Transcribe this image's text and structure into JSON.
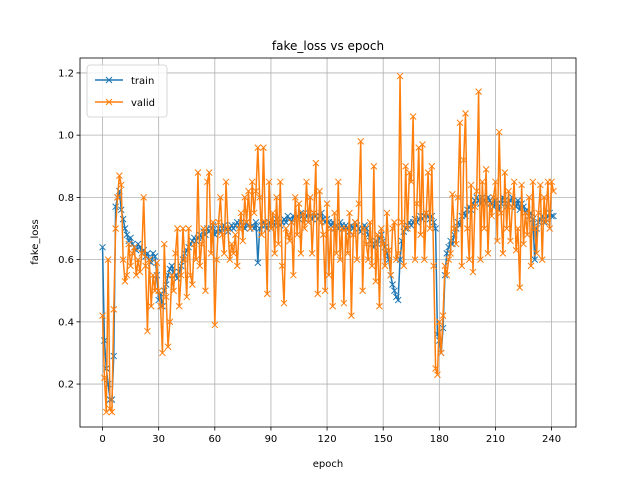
{
  "chart_data": {
    "type": "line",
    "title": "fake_loss vs epoch",
    "xlabel": "epoch",
    "ylabel": "fake_loss",
    "x": [
      0,
      1,
      2,
      3,
      4,
      5,
      6,
      7,
      8,
      9,
      10,
      11,
      12,
      13,
      14,
      15,
      16,
      17,
      18,
      19,
      20,
      21,
      22,
      23,
      24,
      25,
      26,
      27,
      28,
      29,
      30,
      31,
      32,
      33,
      34,
      35,
      36,
      37,
      38,
      39,
      40,
      41,
      42,
      43,
      44,
      45,
      46,
      47,
      48,
      49,
      50,
      51,
      52,
      53,
      54,
      55,
      56,
      57,
      58,
      59,
      60,
      61,
      62,
      63,
      64,
      65,
      66,
      67,
      68,
      69,
      70,
      71,
      72,
      73,
      74,
      75,
      76,
      77,
      78,
      79,
      80,
      81,
      82,
      83,
      84,
      85,
      86,
      87,
      88,
      89,
      90,
      91,
      92,
      93,
      94,
      95,
      96,
      97,
      98,
      99,
      100,
      101,
      102,
      103,
      104,
      105,
      106,
      107,
      108,
      109,
      110,
      111,
      112,
      113,
      114,
      115,
      116,
      117,
      118,
      119,
      120,
      121,
      122,
      123,
      124,
      125,
      126,
      127,
      128,
      129,
      130,
      131,
      132,
      133,
      134,
      135,
      136,
      137,
      138,
      139,
      140,
      141,
      142,
      143,
      144,
      145,
      146,
      147,
      148,
      149,
      150,
      151,
      152,
      153,
      154,
      155,
      156,
      157,
      158,
      159,
      160,
      161,
      162,
      163,
      164,
      165,
      166,
      167,
      168,
      169,
      170,
      171,
      172,
      173,
      174,
      175,
      176,
      177,
      178,
      179,
      180,
      181,
      182,
      183,
      184,
      185,
      186,
      187,
      188,
      189,
      190,
      191,
      192,
      193,
      194,
      195,
      196,
      197,
      198,
      199,
      200,
      201,
      202,
      203,
      204,
      205,
      206,
      207,
      208,
      209,
      210,
      211,
      212,
      213,
      214,
      215,
      216,
      217,
      218,
      219,
      220,
      221,
      222,
      223,
      224,
      225,
      226,
      227,
      228,
      229,
      230,
      231,
      232,
      233,
      234,
      235,
      236,
      237,
      238,
      239,
      240,
      241
    ],
    "series": [
      {
        "name": "train",
        "color": "#1f77b4",
        "values": [
          0.64,
          0.34,
          0.25,
          0.2,
          0.15,
          0.15,
          0.29,
          0.77,
          0.8,
          0.82,
          0.76,
          0.73,
          0.7,
          0.68,
          0.66,
          0.67,
          0.65,
          0.64,
          0.63,
          0.65,
          0.64,
          0.62,
          0.63,
          0.61,
          0.62,
          0.6,
          0.59,
          0.62,
          0.61,
          0.55,
          0.47,
          0.49,
          0.45,
          0.5,
          0.52,
          0.55,
          0.57,
          0.58,
          0.56,
          0.55,
          0.54,
          0.56,
          0.58,
          0.6,
          0.62,
          0.63,
          0.64,
          0.65,
          0.66,
          0.67,
          0.66,
          0.67,
          0.68,
          0.67,
          0.69,
          0.68,
          0.7,
          0.69,
          0.7,
          0.71,
          0.68,
          0.69,
          0.7,
          0.69,
          0.7,
          0.71,
          0.7,
          0.69,
          0.7,
          0.71,
          0.7,
          0.71,
          0.72,
          0.71,
          0.72,
          0.71,
          0.7,
          0.72,
          0.71,
          0.7,
          0.71,
          0.7,
          0.72,
          0.59,
          0.7,
          0.71,
          0.72,
          0.71,
          0.7,
          0.72,
          0.71,
          0.72,
          0.71,
          0.73,
          0.72,
          0.71,
          0.72,
          0.73,
          0.72,
          0.74,
          0.73,
          0.72,
          0.74,
          0.73,
          0.74,
          0.73,
          0.75,
          0.74,
          0.73,
          0.74,
          0.75,
          0.74,
          0.73,
          0.75,
          0.74,
          0.73,
          0.74,
          0.75,
          0.73,
          0.72,
          0.73,
          0.72,
          0.71,
          0.72,
          0.7,
          0.71,
          0.7,
          0.72,
          0.71,
          0.7,
          0.71,
          0.7,
          0.69,
          0.71,
          0.7,
          0.72,
          0.71,
          0.7,
          0.69,
          0.7,
          0.71,
          0.7,
          0.68,
          0.66,
          0.65,
          0.64,
          0.66,
          0.65,
          0.67,
          0.68,
          0.66,
          0.64,
          0.62,
          0.6,
          0.55,
          0.52,
          0.5,
          0.48,
          0.47,
          0.6,
          0.66,
          0.69,
          0.7,
          0.71,
          0.72,
          0.71,
          0.72,
          0.73,
          0.72,
          0.73,
          0.74,
          0.73,
          0.74,
          0.75,
          0.74,
          0.73,
          0.74,
          0.72,
          0.7,
          0.36,
          0.34,
          0.3,
          0.38,
          0.55,
          0.62,
          0.64,
          0.66,
          0.65,
          0.68,
          0.7,
          0.72,
          0.71,
          0.74,
          0.75,
          0.74,
          0.76,
          0.77,
          0.76,
          0.78,
          0.79,
          0.8,
          0.79,
          0.78,
          0.8,
          0.79,
          0.78,
          0.8,
          0.79,
          0.78,
          0.77,
          0.79,
          0.78,
          0.76,
          0.78,
          0.8,
          0.79,
          0.77,
          0.78,
          0.79,
          0.8,
          0.78,
          0.77,
          0.79,
          0.76,
          0.78,
          0.77,
          0.75,
          0.76,
          0.74,
          0.75,
          0.73,
          0.6,
          0.7,
          0.72,
          0.73,
          0.74,
          0.72,
          0.73,
          0.74,
          0.75,
          0.74,
          0.74
        ]
      },
      {
        "name": "valid",
        "color": "#ff7f0e",
        "values": [
          0.42,
          0.22,
          0.11,
          0.6,
          0.12,
          0.11,
          0.44,
          0.7,
          0.8,
          0.87,
          0.84,
          0.6,
          0.53,
          0.55,
          0.65,
          0.58,
          0.62,
          0.64,
          0.55,
          0.6,
          0.56,
          0.62,
          0.8,
          0.58,
          0.37,
          0.6,
          0.45,
          0.55,
          0.5,
          0.59,
          0.5,
          0.45,
          0.3,
          0.65,
          0.48,
          0.32,
          0.4,
          0.55,
          0.5,
          0.62,
          0.7,
          0.45,
          0.55,
          0.7,
          0.6,
          0.48,
          0.7,
          0.55,
          0.52,
          0.65,
          0.6,
          0.88,
          0.58,
          0.65,
          0.7,
          0.5,
          0.85,
          0.88,
          0.62,
          0.72,
          0.39,
          0.6,
          0.72,
          0.8,
          0.68,
          0.62,
          0.85,
          0.7,
          0.6,
          0.65,
          0.62,
          0.68,
          0.58,
          0.7,
          0.75,
          0.66,
          0.8,
          0.72,
          0.82,
          0.7,
          0.85,
          0.75,
          0.82,
          0.96,
          0.8,
          0.68,
          0.96,
          0.72,
          0.49,
          0.85,
          0.7,
          0.75,
          0.62,
          0.8,
          0.65,
          0.85,
          0.58,
          0.46,
          0.7,
          0.68,
          0.66,
          0.72,
          0.55,
          0.8,
          0.68,
          0.78,
          0.62,
          0.75,
          0.7,
          0.85,
          0.72,
          0.8,
          0.62,
          0.75,
          0.91,
          0.49,
          0.82,
          0.72,
          0.68,
          0.5,
          0.78,
          0.55,
          0.7,
          0.45,
          0.75,
          0.62,
          0.85,
          0.6,
          0.7,
          0.46,
          0.7,
          0.62,
          0.75,
          0.42,
          0.68,
          0.72,
          0.6,
          0.78,
          0.98,
          0.5,
          0.7,
          0.65,
          0.6,
          0.72,
          0.58,
          0.9,
          0.53,
          0.68,
          0.45,
          0.7,
          0.65,
          0.58,
          0.75,
          0.63,
          0.55,
          0.7,
          0.72,
          0.6,
          0.62,
          1.19,
          0.72,
          0.58,
          0.9,
          0.7,
          0.88,
          0.85,
          1.06,
          0.6,
          0.78,
          0.96,
          0.68,
          0.97,
          0.6,
          0.75,
          0.88,
          0.7,
          0.9,
          0.58,
          0.25,
          0.23,
          0.4,
          0.3,
          0.42,
          0.58,
          0.55,
          0.6,
          0.62,
          0.81,
          0.7,
          0.65,
          0.8,
          1.04,
          0.58,
          0.92,
          1.07,
          0.7,
          0.6,
          0.84,
          0.56,
          0.77,
          0.82,
          1.14,
          0.6,
          0.85,
          0.7,
          0.89,
          0.62,
          0.78,
          0.74,
          0.8,
          0.85,
          0.66,
          1.01,
          0.75,
          0.62,
          0.88,
          0.7,
          0.82,
          0.66,
          0.77,
          0.85,
          0.63,
          0.7,
          0.51,
          0.84,
          0.65,
          0.75,
          0.68,
          0.8,
          0.58,
          0.85,
          0.7,
          0.62,
          0.75,
          0.84,
          0.6,
          0.8,
          0.72,
          0.85,
          0.7,
          0.85,
          0.82
        ]
      }
    ],
    "xlim": [
      -12.05,
      253.05
    ],
    "xticks": [
      0,
      30,
      60,
      90,
      120,
      150,
      180,
      210,
      240
    ],
    "ylim": [
      0.062,
      1.248
    ],
    "yticks": [
      0.2,
      0.4,
      0.6,
      0.8,
      1.0,
      1.2
    ],
    "grid": true,
    "legend": "upper left",
    "marker": "x"
  }
}
